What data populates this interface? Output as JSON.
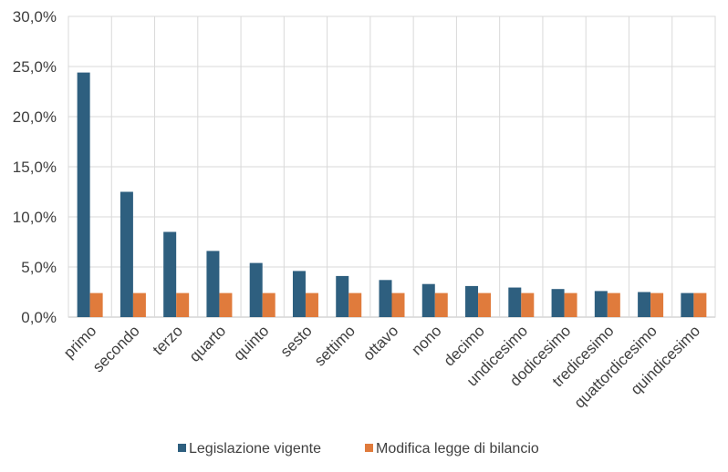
{
  "chart_data": {
    "type": "bar",
    "categories": [
      "primo",
      "secondo",
      "terzo",
      "quarto",
      "quinto",
      "sesto",
      "settimo",
      "ottavo",
      "nono",
      "decimo",
      "undicesimo",
      "dodicesimo",
      "tredicesimo",
      "quattordicesimo",
      "quindicesimo"
    ],
    "series": [
      {
        "name": "Legislazione vigente",
        "color": "#2e5f7f",
        "values": [
          24.4,
          12.5,
          8.5,
          6.6,
          5.4,
          4.6,
          4.1,
          3.7,
          3.3,
          3.1,
          2.95,
          2.8,
          2.6,
          2.5,
          2.4
        ]
      },
      {
        "name": "Modifica legge di bilancio",
        "color": "#e07b3c",
        "values": [
          2.4,
          2.4,
          2.4,
          2.4,
          2.4,
          2.4,
          2.4,
          2.4,
          2.4,
          2.4,
          2.4,
          2.4,
          2.4,
          2.4,
          2.4
        ]
      }
    ],
    "ylim": [
      0,
      30
    ],
    "yticks": [
      "0,0%",
      "5,0%",
      "10,0%",
      "15,0%",
      "20,0%",
      "25,0%",
      "30,0%"
    ],
    "ytick_values": [
      0,
      5,
      10,
      15,
      20,
      25,
      30
    ],
    "grid": true,
    "legend_position": "bottom"
  }
}
